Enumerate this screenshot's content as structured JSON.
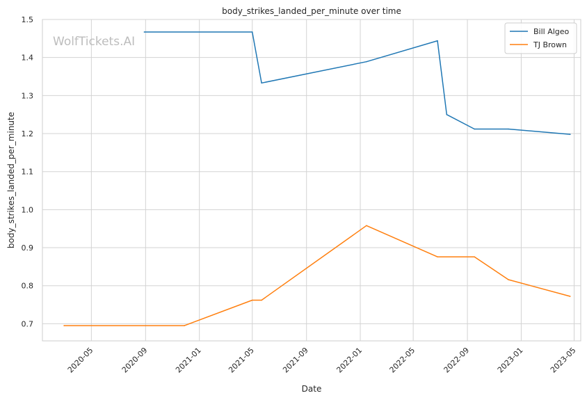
{
  "chart_data": {
    "type": "line",
    "title": "body_strikes_landed_per_minute over time",
    "xlabel": "Date",
    "ylabel": "body_strikes_landed_per_minute",
    "watermark": "WolfTickets.AI",
    "xlim": [
      "2020-01-11",
      "2023-05-16"
    ],
    "ylim": [
      0.655,
      1.5
    ],
    "x_ticks": [
      "2020-05",
      "2020-09",
      "2021-01",
      "2021-05",
      "2021-09",
      "2022-01",
      "2022-05",
      "2022-09",
      "2023-01",
      "2023-05"
    ],
    "y_ticks": [
      0.7,
      0.8,
      0.9,
      1.0,
      1.1,
      1.2,
      1.3,
      1.4,
      1.5
    ],
    "y_tick_labels": [
      "0.7",
      "0.8",
      "0.9",
      "1.0",
      "1.1",
      "1.2",
      "1.3",
      "1.4",
      "1.5"
    ],
    "grid": true,
    "legend_position": "top-right",
    "series": [
      {
        "name": "Bill Algeo",
        "color": "#1f77b4",
        "points": [
          {
            "x": "2020-08-29",
            "y": 1.467
          },
          {
            "x": "2021-05-01",
            "y": 1.467
          },
          {
            "x": "2021-05-22",
            "y": 1.333
          },
          {
            "x": "2022-01-15",
            "y": 1.389
          },
          {
            "x": "2022-06-25",
            "y": 1.444
          },
          {
            "x": "2022-07-16",
            "y": 1.25
          },
          {
            "x": "2022-09-17",
            "y": 1.212
          },
          {
            "x": "2022-12-03",
            "y": 1.212
          },
          {
            "x": "2023-04-22",
            "y": 1.198
          }
        ]
      },
      {
        "name": "TJ Brown",
        "color": "#ff7f0e",
        "points": [
          {
            "x": "2020-02-29",
            "y": 0.695
          },
          {
            "x": "2020-11-28",
            "y": 0.695
          },
          {
            "x": "2021-05-01",
            "y": 0.762
          },
          {
            "x": "2021-05-22",
            "y": 0.762
          },
          {
            "x": "2022-01-15",
            "y": 0.958
          },
          {
            "x": "2022-06-25",
            "y": 0.876
          },
          {
            "x": "2022-09-17",
            "y": 0.876
          },
          {
            "x": "2022-12-03",
            "y": 0.816
          },
          {
            "x": "2023-04-22",
            "y": 0.772
          }
        ]
      }
    ]
  }
}
